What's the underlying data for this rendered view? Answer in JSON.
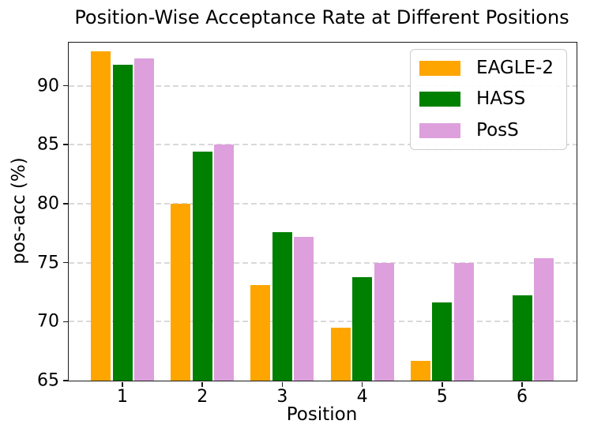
{
  "chart_data": {
    "type": "bar",
    "title": "Position-Wise Acceptance Rate at Different Positions",
    "xlabel": "Position",
    "ylabel": "pos-acc (%)",
    "categories": [
      "1",
      "2",
      "3",
      "4",
      "5",
      "6"
    ],
    "series": [
      {
        "name": "EAGLE-2",
        "color": "#FFA500",
        "values": [
          92.9,
          80.0,
          73.1,
          69.5,
          66.7,
          null
        ]
      },
      {
        "name": "HASS",
        "color": "#008000",
        "values": [
          91.8,
          84.4,
          77.6,
          73.8,
          71.6,
          72.2
        ]
      },
      {
        "name": "PosS",
        "color": "#DDA0DD",
        "values": [
          92.3,
          85.0,
          77.2,
          75.0,
          75.0,
          75.4
        ]
      }
    ],
    "ylim": [
      65,
      93.65
    ],
    "yticks": [
      65,
      70,
      75,
      80,
      85,
      90
    ],
    "grid": true,
    "grid_axis": "y",
    "grid_style": "dashed",
    "legend_position": "upper right",
    "colors": {
      "grid": "#d9d9d9",
      "spine": "#1a1a1a",
      "background": "#ffffff"
    }
  }
}
